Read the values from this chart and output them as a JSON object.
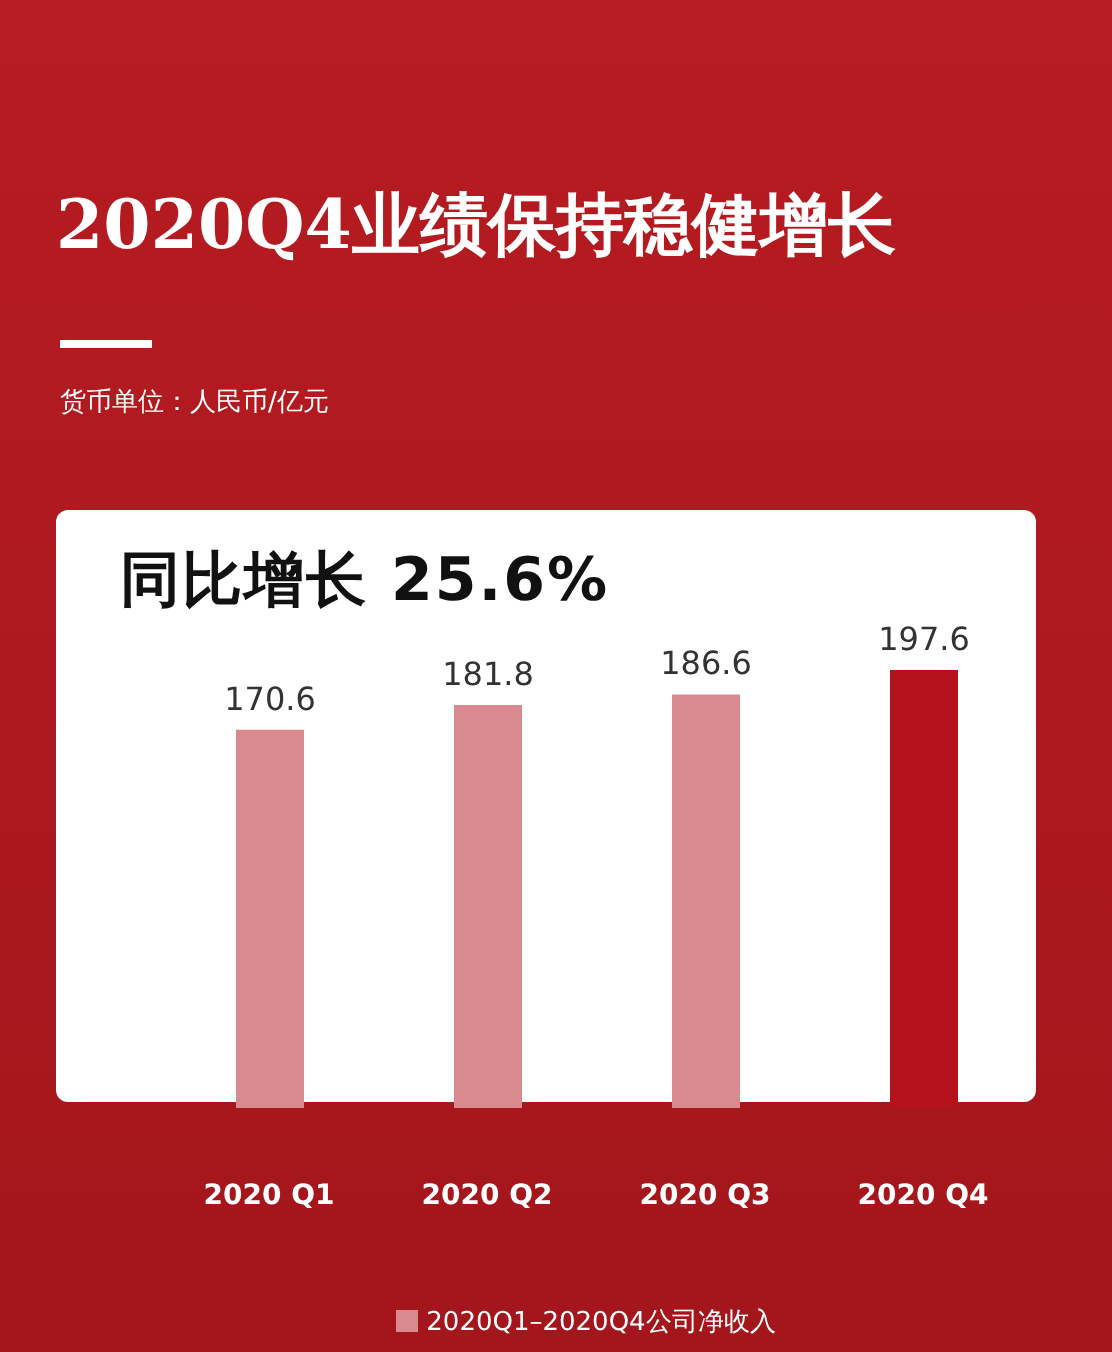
{
  "chart_data": {
    "type": "bar",
    "title": "2020Q4业绩保持稳健增长",
    "annotations": [
      "货币单位：人民币/亿元",
      "同比增长 25.6%"
    ],
    "categories": [
      "2020  Q1",
      "2020  Q2",
      "2020  Q3",
      "2020  Q4"
    ],
    "series": [
      {
        "name": "2020Q1–2020Q4公司净收入",
        "values": [
          170.6,
          181.8,
          186.6,
          197.6
        ]
      }
    ],
    "colors": [
      "#d98a8f",
      "#d98a8f",
      "#d98a8f",
      "#b5121b"
    ],
    "data_labels": true,
    "legend": "bottom"
  }
}
